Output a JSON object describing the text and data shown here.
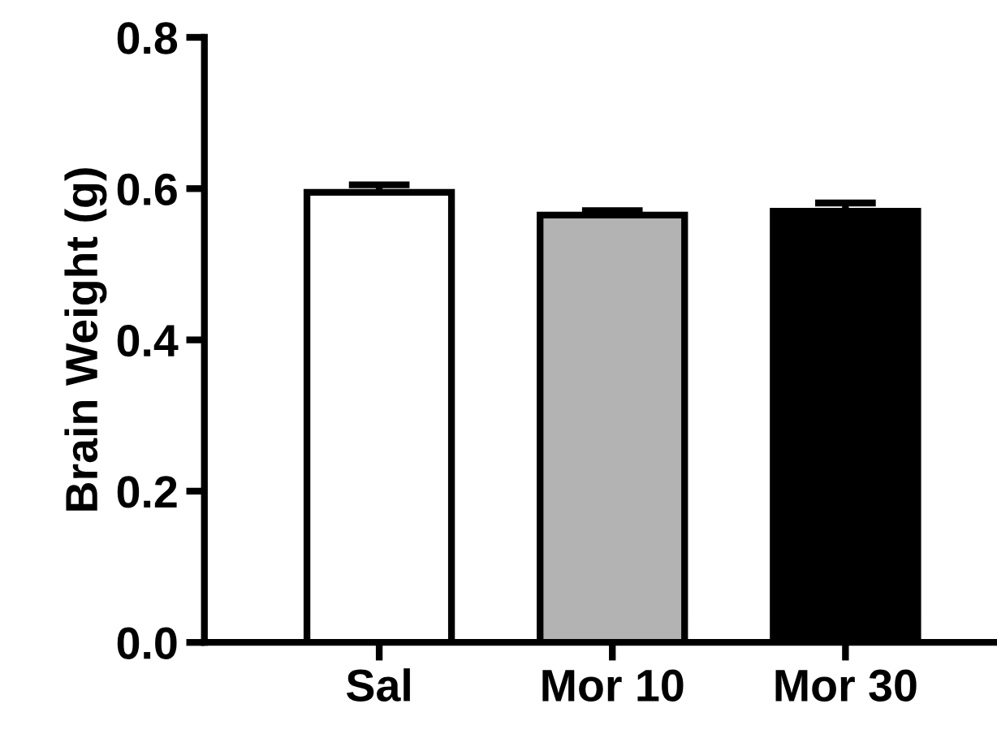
{
  "chart_data": {
    "type": "bar",
    "ylabel": "Brain Weight (g)",
    "categories": [
      "Sal",
      "Mor 10",
      "Mor 30"
    ],
    "values": [
      0.595,
      0.565,
      0.57
    ],
    "errors": [
      [
        0.595,
        0.605
      ],
      [
        0.565,
        0.571
      ],
      [
        0.57,
        0.581
      ]
    ],
    "colors": [
      "#ffffff",
      "#b3b3b3",
      "#000000"
    ],
    "ylim": [
      0,
      0.8
    ],
    "yticks": [
      {
        "value": 0,
        "label": "0.0"
      },
      {
        "value": 0.2,
        "label": "0.2"
      },
      {
        "value": 0.4,
        "label": "0.4"
      },
      {
        "value": 0.6,
        "label": "0.6"
      },
      {
        "value": 0.8,
        "label": "0.8"
      }
    ],
    "grid": false
  }
}
